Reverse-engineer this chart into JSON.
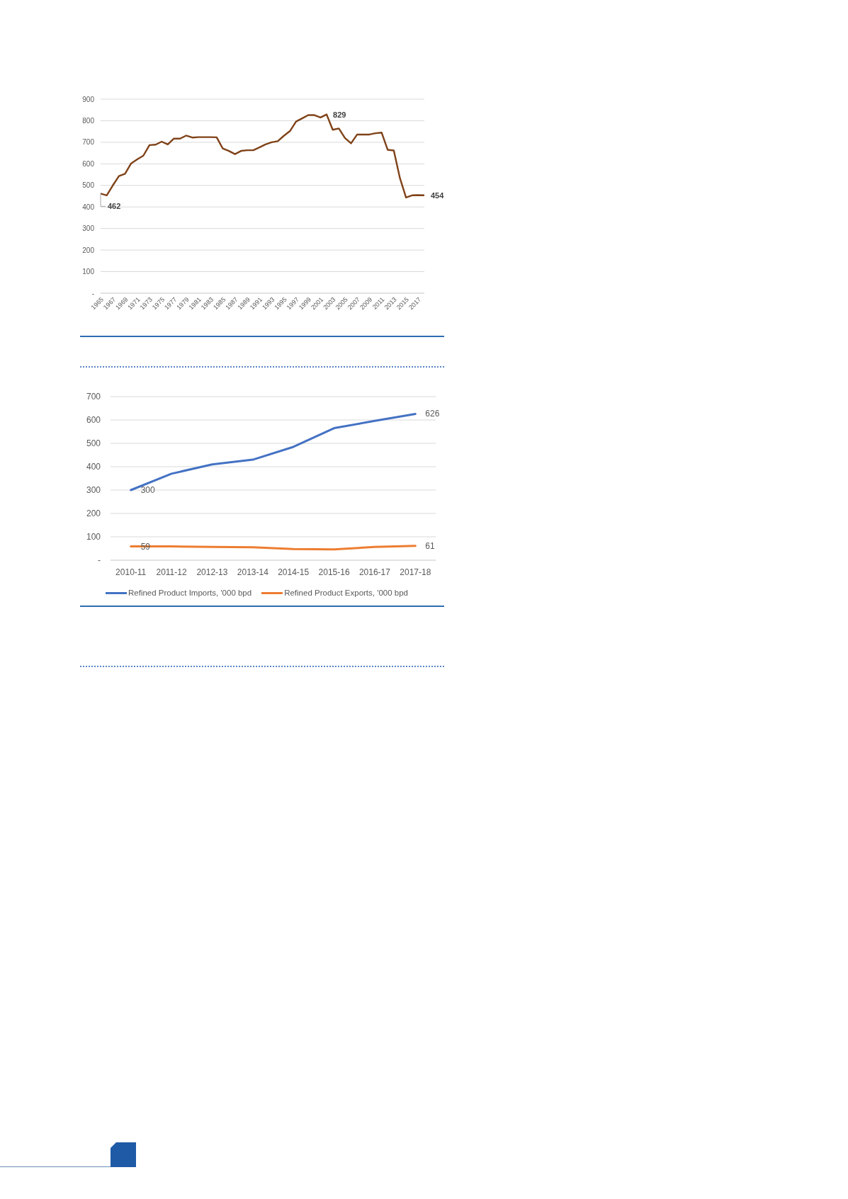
{
  "chart_data": [
    {
      "type": "line",
      "categories": [
        "1965",
        null,
        "1967",
        null,
        "1969",
        null,
        "1971",
        null,
        "1973",
        null,
        "1975",
        null,
        "1977",
        null,
        "1979",
        null,
        "1981",
        null,
        "1983",
        null,
        "1985",
        null,
        "1987",
        null,
        "1989",
        null,
        "1991",
        null,
        "1993",
        null,
        "1995",
        null,
        "1997",
        null,
        "1999",
        null,
        "2001",
        null,
        "2003",
        null,
        "2005",
        null,
        "2007",
        null,
        "2009",
        null,
        "2011",
        null,
        "2013",
        null,
        "2015",
        null,
        "2017",
        null
      ],
      "series": [
        {
          "color": "#7f4218",
          "values": [
            462,
            454,
            500,
            543,
            554,
            602,
            621,
            638,
            687,
            689,
            703,
            690,
            717,
            717,
            731,
            722,
            724,
            724,
            724,
            723,
            671,
            660,
            645,
            660,
            663,
            663,
            676,
            690,
            700,
            705,
            730,
            752,
            796,
            811,
            826,
            826,
            815,
            829,
            758,
            764,
            720,
            695,
            736,
            736,
            736,
            742,
            745,
            665,
            662,
            534,
            444,
            454,
            455,
            454
          ],
          "value_labels": [
            "462",
            null,
            null,
            null,
            null,
            null,
            null,
            null,
            null,
            null,
            null,
            null,
            null,
            null,
            null,
            null,
            null,
            null,
            null,
            null,
            null,
            null,
            null,
            null,
            null,
            null,
            null,
            null,
            null,
            null,
            null,
            null,
            null,
            null,
            null,
            null,
            null,
            "829",
            null,
            null,
            null,
            null,
            null,
            null,
            null,
            null,
            null,
            null,
            null,
            null,
            null,
            null,
            null,
            "454"
          ]
        }
      ],
      "ylim": [
        0,
        900
      ],
      "yticks": [
        {
          "value": 0,
          "label": "-"
        },
        100,
        200,
        300,
        400,
        500,
        600,
        700,
        800,
        900
      ],
      "grid": "y"
    },
    {
      "type": "line",
      "categories": [
        "2010-11",
        "2011-12",
        "2012-13",
        "2013-14",
        "2014-15",
        "2015-16",
        "2016-17",
        "2017-18"
      ],
      "series": [
        {
          "name": "Refined Product Imports, '000 bpd",
          "color": "#4472c4",
          "values": [
            300,
            370,
            410,
            430,
            485,
            565,
            596,
            626
          ],
          "value_labels": [
            "300",
            null,
            null,
            null,
            null,
            null,
            null,
            "626"
          ]
        },
        {
          "name": "Refined Product Exports, '000 bpd",
          "color": "#ed7d31",
          "values": [
            59,
            59,
            57,
            55,
            48,
            46,
            57,
            61
          ],
          "value_labels": [
            "59",
            null,
            null,
            null,
            null,
            null,
            null,
            "61"
          ]
        }
      ],
      "ylim": [
        0,
        700
      ],
      "yticks": [
        {
          "value": 0,
          "label": "-"
        },
        100,
        200,
        300,
        400,
        500,
        600,
        700
      ],
      "grid": "y",
      "legend": "bottom"
    }
  ]
}
